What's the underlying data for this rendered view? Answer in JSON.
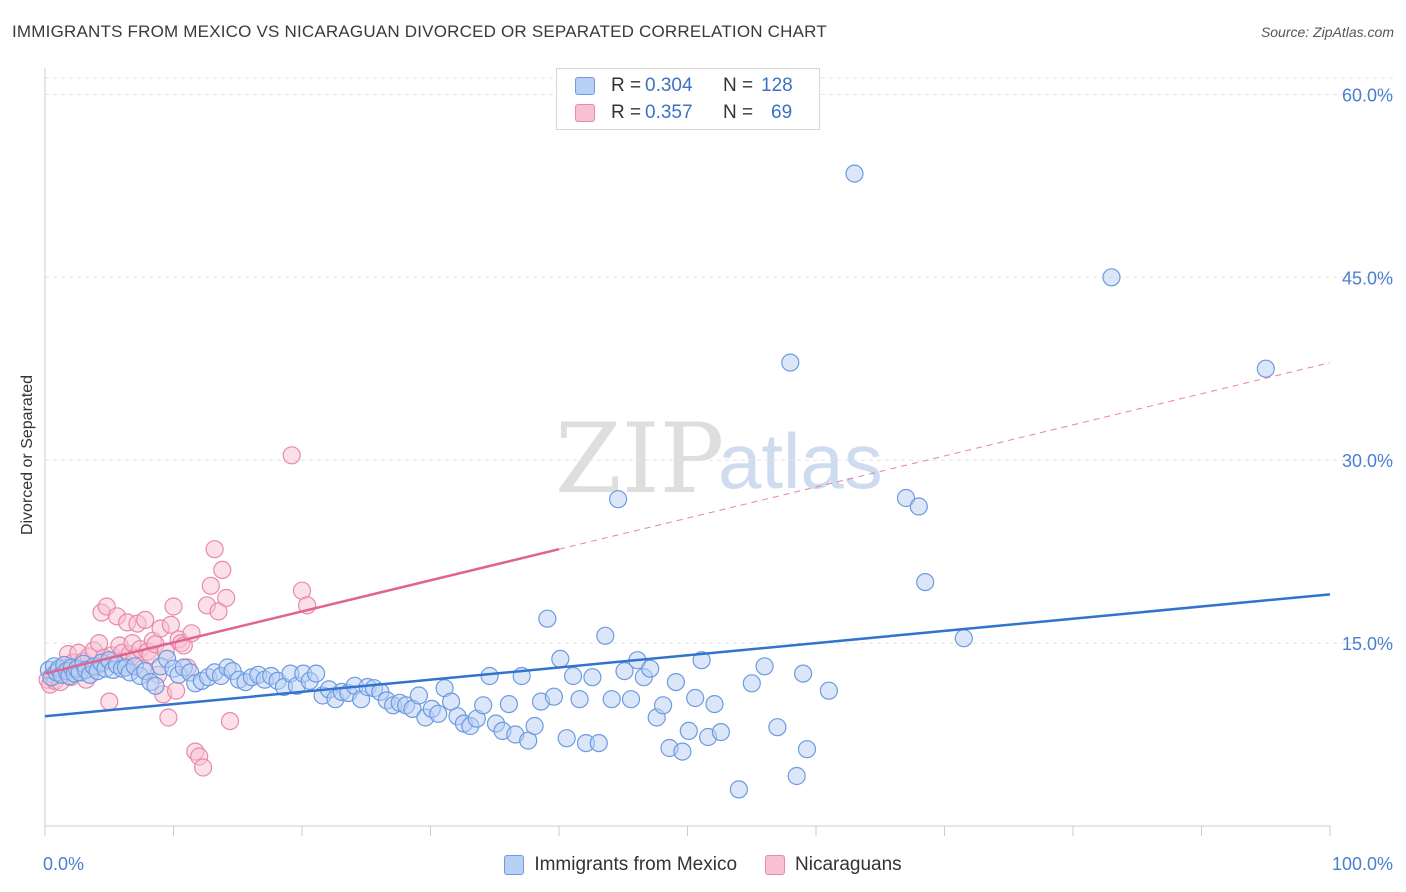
{
  "header": {
    "title": "IMMIGRANTS FROM MEXICO VS NICARAGUAN DIVORCED OR SEPARATED CORRELATION CHART",
    "source": "Source: ZipAtlas.com"
  },
  "watermark": {
    "zip": "ZIP",
    "atlas": "atlas"
  },
  "colors": {
    "blue_fill": "#b8d0f4",
    "blue_stroke": "#6d9ae0",
    "blue_line": "#3273cc",
    "pink_fill": "#f8c1d3",
    "pink_stroke": "#e88aaa",
    "pink_line": "#e0648f",
    "tick_label": "#4a7fd0",
    "grid": "#e3e3e3"
  },
  "stats": [
    {
      "r_label": "R =",
      "r_value": "0.304",
      "n_label": "N =",
      "n_value": "128"
    },
    {
      "r_label": "R =",
      "r_value": "0.357",
      "n_label": "N =",
      "n_value": "69"
    }
  ],
  "legend": {
    "series1": "Immigrants from Mexico",
    "series2": "Nicaraguans"
  },
  "chart_data": {
    "type": "scatter",
    "title": "IMMIGRANTS FROM MEXICO VS NICARAGUAN DIVORCED OR SEPARATED CORRELATION CHART",
    "xlabel": "",
    "ylabel": "Divorced or Separated",
    "xlim": [
      0,
      100
    ],
    "ylim": [
      0,
      62
    ],
    "x_tick_labels": [
      "0.0%",
      "100.0%"
    ],
    "y_ticks": [
      15,
      30,
      45,
      60
    ],
    "y_tick_labels": [
      "15.0%",
      "30.0%",
      "45.0%",
      "60.0%"
    ],
    "grid": true,
    "legend_position": "bottom",
    "series": [
      {
        "name": "Immigrants from Mexico",
        "trend": {
          "x": [
            0,
            100
          ],
          "y": [
            9.0,
            19.0
          ]
        },
        "points": [
          [
            0.3,
            12.8
          ],
          [
            0.5,
            12.2
          ],
          [
            0.7,
            13.1
          ],
          [
            0.9,
            12.6
          ],
          [
            1.1,
            12.9
          ],
          [
            1.3,
            12.4
          ],
          [
            1.5,
            13.2
          ],
          [
            1.7,
            12.7
          ],
          [
            1.9,
            12.3
          ],
          [
            2.1,
            13.0
          ],
          [
            2.3,
            12.5
          ],
          [
            2.5,
            12.9
          ],
          [
            2.7,
            12.6
          ],
          [
            3.0,
            13.3
          ],
          [
            3.2,
            12.8
          ],
          [
            3.5,
            12.4
          ],
          [
            3.8,
            13.1
          ],
          [
            4.1,
            12.7
          ],
          [
            4.4,
            13.4
          ],
          [
            4.7,
            12.9
          ],
          [
            5.0,
            13.6
          ],
          [
            5.3,
            12.8
          ],
          [
            5.6,
            13.2
          ],
          [
            6.0,
            12.9
          ],
          [
            6.3,
            13.0
          ],
          [
            6.6,
            12.6
          ],
          [
            7.0,
            13.1
          ],
          [
            7.4,
            12.3
          ],
          [
            7.8,
            12.7
          ],
          [
            8.2,
            11.8
          ],
          [
            8.6,
            11.5
          ],
          [
            9.0,
            13.1
          ],
          [
            9.5,
            13.7
          ],
          [
            10.0,
            12.9
          ],
          [
            10.4,
            12.4
          ],
          [
            10.8,
            13.0
          ],
          [
            11.3,
            12.6
          ],
          [
            11.7,
            11.7
          ],
          [
            12.2,
            11.9
          ],
          [
            12.7,
            12.2
          ],
          [
            13.2,
            12.6
          ],
          [
            13.7,
            12.3
          ],
          [
            14.2,
            13.0
          ],
          [
            14.6,
            12.7
          ],
          [
            15.1,
            12.0
          ],
          [
            15.6,
            11.8
          ],
          [
            16.1,
            12.2
          ],
          [
            16.6,
            12.4
          ],
          [
            17.1,
            12.0
          ],
          [
            17.6,
            12.3
          ],
          [
            18.1,
            11.9
          ],
          [
            18.6,
            11.4
          ],
          [
            19.1,
            12.5
          ],
          [
            19.6,
            11.5
          ],
          [
            20.1,
            12.5
          ],
          [
            20.6,
            11.9
          ],
          [
            21.1,
            12.5
          ],
          [
            21.6,
            10.7
          ],
          [
            22.1,
            11.2
          ],
          [
            22.6,
            10.4
          ],
          [
            23.1,
            11.0
          ],
          [
            23.6,
            10.9
          ],
          [
            24.1,
            11.5
          ],
          [
            24.6,
            10.4
          ],
          [
            25.1,
            11.4
          ],
          [
            25.6,
            11.3
          ],
          [
            26.1,
            11.0
          ],
          [
            26.6,
            10.3
          ],
          [
            27.1,
            9.9
          ],
          [
            27.6,
            10.1
          ],
          [
            28.1,
            9.9
          ],
          [
            28.6,
            9.6
          ],
          [
            29.1,
            10.7
          ],
          [
            29.6,
            8.9
          ],
          [
            30.1,
            9.6
          ],
          [
            30.6,
            9.2
          ],
          [
            31.1,
            11.3
          ],
          [
            31.6,
            10.2
          ],
          [
            32.1,
            9.0
          ],
          [
            32.6,
            8.4
          ],
          [
            33.1,
            8.2
          ],
          [
            33.6,
            8.8
          ],
          [
            34.1,
            9.9
          ],
          [
            34.6,
            12.3
          ],
          [
            35.1,
            8.4
          ],
          [
            35.6,
            7.8
          ],
          [
            36.1,
            10.0
          ],
          [
            36.6,
            7.5
          ],
          [
            37.1,
            12.3
          ],
          [
            37.6,
            7.0
          ],
          [
            38.1,
            8.2
          ],
          [
            38.6,
            10.2
          ],
          [
            39.1,
            17.0
          ],
          [
            39.6,
            10.6
          ],
          [
            40.1,
            13.7
          ],
          [
            40.6,
            7.2
          ],
          [
            41.1,
            12.3
          ],
          [
            41.6,
            10.4
          ],
          [
            42.1,
            6.8
          ],
          [
            42.6,
            12.2
          ],
          [
            43.1,
            6.8
          ],
          [
            43.6,
            15.6
          ],
          [
            44.1,
            10.4
          ],
          [
            44.6,
            26.8
          ],
          [
            45.1,
            12.7
          ],
          [
            45.6,
            10.4
          ],
          [
            46.1,
            13.6
          ],
          [
            46.6,
            12.2
          ],
          [
            47.1,
            12.9
          ],
          [
            47.6,
            8.9
          ],
          [
            48.1,
            9.9
          ],
          [
            48.6,
            6.4
          ],
          [
            49.1,
            11.8
          ],
          [
            49.6,
            6.1
          ],
          [
            50.1,
            7.8
          ],
          [
            50.6,
            10.5
          ],
          [
            51.1,
            13.6
          ],
          [
            51.6,
            7.3
          ],
          [
            52.1,
            10.0
          ],
          [
            52.6,
            7.7
          ],
          [
            54.0,
            3.0
          ],
          [
            55.0,
            11.7
          ],
          [
            56.0,
            13.1
          ],
          [
            57.0,
            8.1
          ],
          [
            58.0,
            38.0
          ],
          [
            58.5,
            4.1
          ],
          [
            59.0,
            12.5
          ],
          [
            59.3,
            6.3
          ],
          [
            61.0,
            11.1
          ],
          [
            63.0,
            53.5
          ],
          [
            67.0,
            26.9
          ],
          [
            68.0,
            26.2
          ],
          [
            68.5,
            20.0
          ],
          [
            71.5,
            15.4
          ],
          [
            83.0,
            45.0
          ],
          [
            95.0,
            37.5
          ]
        ]
      },
      {
        "name": "Nicaraguans",
        "trend": {
          "x": [
            0,
            40
          ],
          "y": [
            12.5,
            22.7
          ]
        },
        "trend_extension": {
          "x": [
            40,
            100
          ],
          "y": [
            22.7,
            38.0
          ]
        },
        "points": [
          [
            0.2,
            12.0
          ],
          [
            0.4,
            11.6
          ],
          [
            0.6,
            12.4
          ],
          [
            0.8,
            11.9
          ],
          [
            1.0,
            12.7
          ],
          [
            1.2,
            11.8
          ],
          [
            1.4,
            12.5
          ],
          [
            1.6,
            13.0
          ],
          [
            1.8,
            14.1
          ],
          [
            2.0,
            12.2
          ],
          [
            2.2,
            13.4
          ],
          [
            2.4,
            12.8
          ],
          [
            2.6,
            14.2
          ],
          [
            2.8,
            12.6
          ],
          [
            3.0,
            13.5
          ],
          [
            3.2,
            12.0
          ],
          [
            3.4,
            13.9
          ],
          [
            3.6,
            12.9
          ],
          [
            3.8,
            14.4
          ],
          [
            4.0,
            13.1
          ],
          [
            4.2,
            15.0
          ],
          [
            4.4,
            17.5
          ],
          [
            4.6,
            13.8
          ],
          [
            4.8,
            18.0
          ],
          [
            5.0,
            10.2
          ],
          [
            5.2,
            14.0
          ],
          [
            5.4,
            13.6
          ],
          [
            5.6,
            17.2
          ],
          [
            5.8,
            14.8
          ],
          [
            6.0,
            14.2
          ],
          [
            6.2,
            13.3
          ],
          [
            6.4,
            16.7
          ],
          [
            6.6,
            14.1
          ],
          [
            6.8,
            15.0
          ],
          [
            7.0,
            13.8
          ],
          [
            7.2,
            16.6
          ],
          [
            7.4,
            14.5
          ],
          [
            7.6,
            12.9
          ],
          [
            7.8,
            16.9
          ],
          [
            8.0,
            14.3
          ],
          [
            8.2,
            14.0
          ],
          [
            8.4,
            15.2
          ],
          [
            8.6,
            14.9
          ],
          [
            8.8,
            12.4
          ],
          [
            9.0,
            16.2
          ],
          [
            9.2,
            10.8
          ],
          [
            9.4,
            14.3
          ],
          [
            9.6,
            8.9
          ],
          [
            9.8,
            16.5
          ],
          [
            10.0,
            18.0
          ],
          [
            10.2,
            11.1
          ],
          [
            10.4,
            15.3
          ],
          [
            10.6,
            15.0
          ],
          [
            10.8,
            14.8
          ],
          [
            11.1,
            13.0
          ],
          [
            11.4,
            15.8
          ],
          [
            11.7,
            6.1
          ],
          [
            12.0,
            5.7
          ],
          [
            12.3,
            4.8
          ],
          [
            12.6,
            18.1
          ],
          [
            12.9,
            19.7
          ],
          [
            13.2,
            22.7
          ],
          [
            13.5,
            17.6
          ],
          [
            13.8,
            21.0
          ],
          [
            14.1,
            18.7
          ],
          [
            14.4,
            8.6
          ],
          [
            19.2,
            30.4
          ],
          [
            20.0,
            19.3
          ],
          [
            20.4,
            18.1
          ]
        ]
      }
    ]
  }
}
